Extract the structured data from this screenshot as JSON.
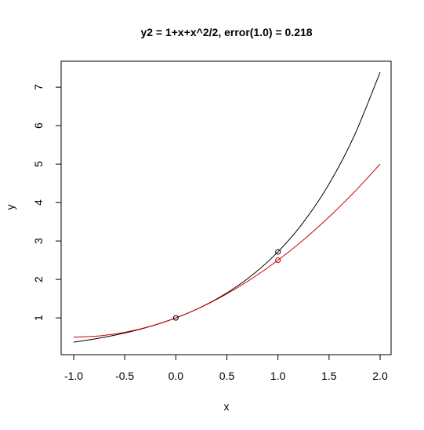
{
  "chart_data": {
    "type": "line",
    "title": "y2 = 1+x+x^2/2, error(1.0) =  0.218",
    "xlabel": "x",
    "ylabel": "y",
    "xlim": [
      -1.0,
      2.0
    ],
    "ylim": [
      0.37,
      7.39
    ],
    "x_ticks": [
      "-1.0",
      "-0.5",
      "0.0",
      "0.5",
      "1.0",
      "1.5",
      "2.0"
    ],
    "x_tick_values": [
      -1.0,
      -0.5,
      0.0,
      0.5,
      1.0,
      1.5,
      2.0
    ],
    "y_ticks": [
      "1",
      "2",
      "3",
      "4",
      "5",
      "6",
      "7"
    ],
    "y_tick_values": [
      1,
      2,
      3,
      4,
      5,
      6,
      7
    ],
    "grid": false,
    "series": [
      {
        "color": "#000000",
        "x": [
          -1.0,
          -0.75,
          -0.5,
          -0.25,
          0.0,
          0.25,
          0.5,
          0.75,
          1.0,
          1.25,
          1.5,
          1.75,
          2.0
        ],
        "y": [
          0.368,
          0.472,
          0.607,
          0.779,
          1.0,
          1.284,
          1.649,
          2.117,
          2.718,
          3.49,
          4.482,
          5.755,
          7.389
        ]
      },
      {
        "color": "#cc0000",
        "x": [
          -1.0,
          -0.75,
          -0.5,
          -0.25,
          0.0,
          0.25,
          0.5,
          0.75,
          1.0,
          1.25,
          1.5,
          1.75,
          2.0
        ],
        "y": [
          0.5,
          0.531,
          0.625,
          0.781,
          1.0,
          1.281,
          1.625,
          2.031,
          2.5,
          3.031,
          3.625,
          4.281,
          5.0
        ]
      }
    ],
    "points": [
      {
        "x": 0.0,
        "y": 1.0,
        "color": "#000000"
      },
      {
        "x": 1.0,
        "y": 2.718,
        "color": "#000000"
      },
      {
        "x": 1.0,
        "y": 2.5,
        "color": "#cc0000"
      }
    ]
  }
}
